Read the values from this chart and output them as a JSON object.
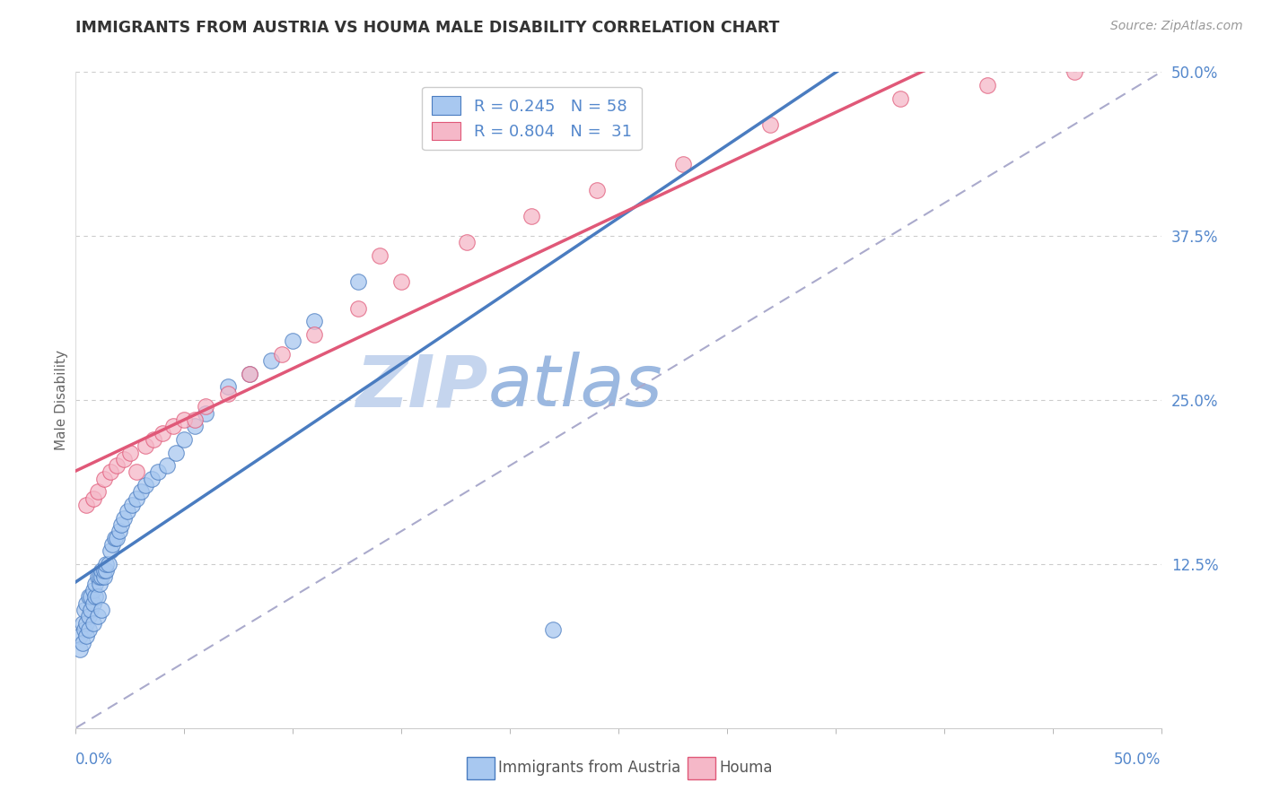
{
  "title": "IMMIGRANTS FROM AUSTRIA VS HOUMA MALE DISABILITY CORRELATION CHART",
  "source_text": "Source: ZipAtlas.com",
  "ylabel": "Male Disability",
  "ytick_labels": [
    "12.5%",
    "25.0%",
    "37.5%",
    "50.0%"
  ],
  "ytick_values": [
    0.125,
    0.25,
    0.375,
    0.5
  ],
  "xmin": 0.0,
  "xmax": 0.5,
  "ymin": 0.0,
  "ymax": 0.5,
  "legend_label1": "Immigrants from Austria",
  "legend_label2": "Houma",
  "color_blue": "#A8C8F0",
  "color_pink": "#F5B8C8",
  "color_blue_line": "#4A7CC0",
  "color_pink_line": "#E05878",
  "color_diag": "#AAAACC",
  "watermark_zip_color": "#C8D8F0",
  "watermark_atlas_color": "#9BB8E8",
  "blue_x": [
    0.002,
    0.003,
    0.004,
    0.004,
    0.005,
    0.005,
    0.006,
    0.006,
    0.007,
    0.007,
    0.008,
    0.008,
    0.009,
    0.009,
    0.01,
    0.01,
    0.011,
    0.011,
    0.012,
    0.012,
    0.013,
    0.013,
    0.014,
    0.014,
    0.015,
    0.016,
    0.017,
    0.018,
    0.019,
    0.02,
    0.021,
    0.022,
    0.024,
    0.026,
    0.028,
    0.03,
    0.032,
    0.035,
    0.038,
    0.042,
    0.046,
    0.05,
    0.055,
    0.06,
    0.07,
    0.08,
    0.09,
    0.1,
    0.11,
    0.13,
    0.002,
    0.003,
    0.005,
    0.006,
    0.008,
    0.01,
    0.012,
    0.22
  ],
  "blue_y": [
    0.07,
    0.08,
    0.075,
    0.09,
    0.08,
    0.095,
    0.085,
    0.1,
    0.09,
    0.1,
    0.095,
    0.105,
    0.1,
    0.11,
    0.1,
    0.115,
    0.11,
    0.115,
    0.115,
    0.12,
    0.115,
    0.12,
    0.12,
    0.125,
    0.125,
    0.135,
    0.14,
    0.145,
    0.145,
    0.15,
    0.155,
    0.16,
    0.165,
    0.17,
    0.175,
    0.18,
    0.185,
    0.19,
    0.195,
    0.2,
    0.21,
    0.22,
    0.23,
    0.24,
    0.26,
    0.27,
    0.28,
    0.295,
    0.31,
    0.34,
    0.06,
    0.065,
    0.07,
    0.075,
    0.08,
    0.085,
    0.09,
    0.075
  ],
  "pink_x": [
    0.005,
    0.008,
    0.01,
    0.013,
    0.016,
    0.019,
    0.022,
    0.025,
    0.028,
    0.032,
    0.036,
    0.04,
    0.045,
    0.05,
    0.055,
    0.06,
    0.07,
    0.08,
    0.095,
    0.11,
    0.13,
    0.15,
    0.18,
    0.21,
    0.24,
    0.28,
    0.32,
    0.38,
    0.42,
    0.46,
    0.14
  ],
  "pink_y": [
    0.17,
    0.175,
    0.18,
    0.19,
    0.195,
    0.2,
    0.205,
    0.21,
    0.195,
    0.215,
    0.22,
    0.225,
    0.23,
    0.235,
    0.235,
    0.245,
    0.255,
    0.27,
    0.285,
    0.3,
    0.32,
    0.34,
    0.37,
    0.39,
    0.41,
    0.43,
    0.46,
    0.48,
    0.49,
    0.5,
    0.36
  ]
}
